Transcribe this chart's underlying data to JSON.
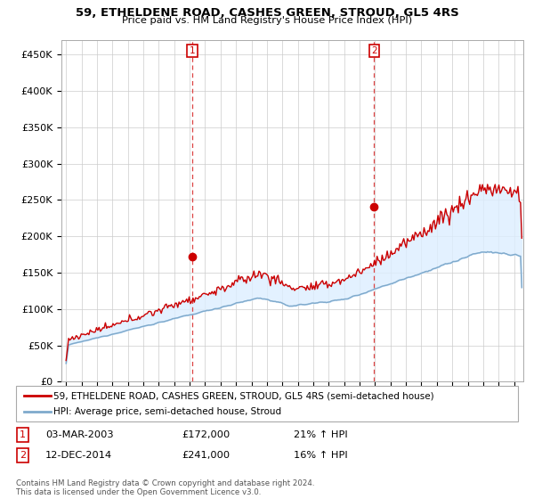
{
  "title": "59, ETHELDENE ROAD, CASHES GREEN, STROUD, GL5 4RS",
  "subtitle": "Price paid vs. HM Land Registry's House Price Index (HPI)",
  "legend_line1": "59, ETHELDENE ROAD, CASHES GREEN, STROUD, GL5 4RS (semi-detached house)",
  "legend_line2": "HPI: Average price, semi-detached house, Stroud",
  "annotation1_label": "1",
  "annotation1_date": "03-MAR-2003",
  "annotation1_price": "£172,000",
  "annotation1_hpi": "21% ↑ HPI",
  "annotation2_label": "2",
  "annotation2_date": "12-DEC-2014",
  "annotation2_price": "£241,000",
  "annotation2_hpi": "16% ↑ HPI",
  "footnote": "Contains HM Land Registry data © Crown copyright and database right 2024.\nThis data is licensed under the Open Government Licence v3.0.",
  "red_color": "#cc0000",
  "blue_color": "#7faacc",
  "fill_color": "#ddeeff",
  "vline_color": "#dd4444",
  "marker1_x": 2003.17,
  "marker1_y": 172000,
  "marker2_x": 2014.95,
  "marker2_y": 241000,
  "ylim": [
    0,
    470000
  ],
  "xlim_start": 1994.7,
  "xlim_end": 2024.6,
  "yticks": [
    0,
    50000,
    100000,
    150000,
    200000,
    250000,
    300000,
    350000,
    400000,
    450000
  ],
  "ylabels": [
    "£0",
    "£50K",
    "£100K",
    "£150K",
    "£200K",
    "£250K",
    "£300K",
    "£350K",
    "£400K",
    "£450K"
  ]
}
